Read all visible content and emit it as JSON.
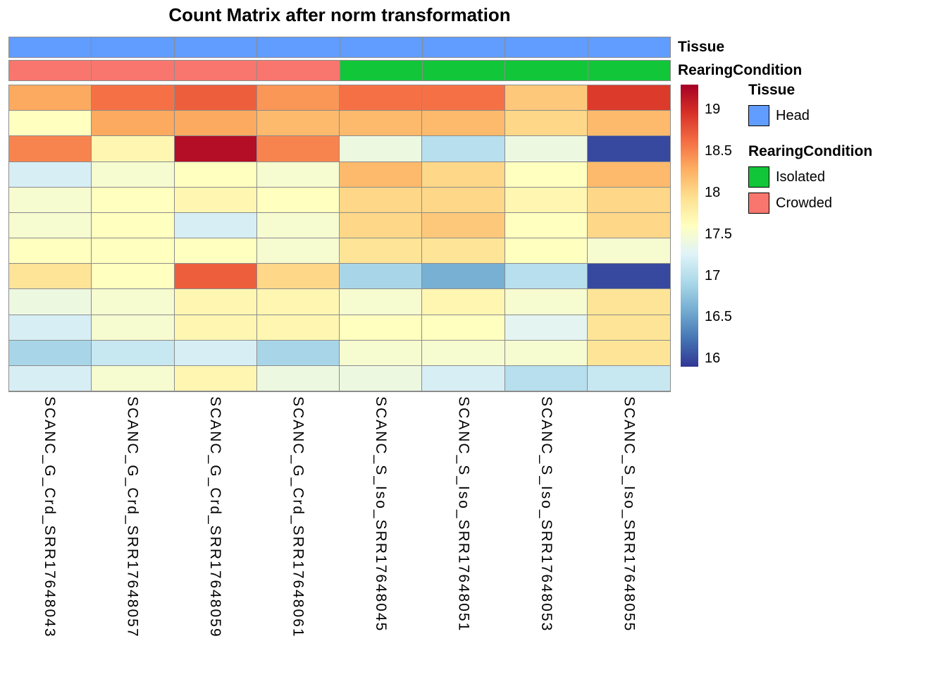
{
  "title": "Count Matrix after norm transformation",
  "annotation_rows": {
    "tissue_label": "Tissue",
    "rearing_label": "RearingCondition"
  },
  "annotation_colors": {
    "Head": "#619CFF",
    "Isolated": "#11C638",
    "Crowded": "#F8766D"
  },
  "legend": {
    "tissue_title": "Tissue",
    "tissue_items": [
      {
        "label": "Head",
        "color": "#619CFF"
      }
    ],
    "rearing_title": "RearingCondition",
    "rearing_items": [
      {
        "label": "Isolated",
        "color": "#11C638"
      },
      {
        "label": "Crowded",
        "color": "#F8766D"
      }
    ]
  },
  "colorbar": {
    "min": 15.9,
    "max": 19.3,
    "ticks": [
      19,
      18.5,
      18,
      17.5,
      17,
      16.5,
      16
    ],
    "palette": [
      "#313695",
      "#4575B4",
      "#74ADD1",
      "#ABD9E9",
      "#E0F3F8",
      "#FFFFBF",
      "#FEE090",
      "#FDAE61",
      "#F46D43",
      "#D73027",
      "#A50026"
    ]
  },
  "chart_data": {
    "type": "heatmap",
    "title": "Count Matrix after norm transformation",
    "xlabel": "",
    "ylabel": "",
    "value_range": [
      15.9,
      19.3
    ],
    "legend_position": "right",
    "grid": true,
    "columns": [
      "SCANC_G_Crd_SRR17648043",
      "SCANC_G_Crd_SRR17648057",
      "SCANC_G_Crd_SRR17648059",
      "SCANC_G_Crd_SRR17648061",
      "SCANC_S_Iso_SRR17648045",
      "SCANC_S_Iso_SRR17648051",
      "SCANC_S_Iso_SRR17648053",
      "SCANC_S_Iso_SRR17648055"
    ],
    "col_annotations": {
      "Tissue": [
        "Head",
        "Head",
        "Head",
        "Head",
        "Head",
        "Head",
        "Head",
        "Head"
      ],
      "RearingCondition": [
        "Crowded",
        "Crowded",
        "Crowded",
        "Crowded",
        "Isolated",
        "Isolated",
        "Isolated",
        "Isolated"
      ]
    },
    "values": [
      [
        18.3,
        18.6,
        18.7,
        18.4,
        18.6,
        18.6,
        18.1,
        18.9
      ],
      [
        17.6,
        18.3,
        18.3,
        18.2,
        18.2,
        18.2,
        18.0,
        18.2
      ],
      [
        18.5,
        17.7,
        19.2,
        18.5,
        17.4,
        17.0,
        17.4,
        16.0
      ],
      [
        17.2,
        17.5,
        17.6,
        17.5,
        18.2,
        18.0,
        17.6,
        18.2
      ],
      [
        17.5,
        17.6,
        17.7,
        17.6,
        18.0,
        18.0,
        17.7,
        18.0
      ],
      [
        17.5,
        17.6,
        17.2,
        17.5,
        18.0,
        18.1,
        17.6,
        18.0
      ],
      [
        17.6,
        17.6,
        17.6,
        17.5,
        17.9,
        17.9,
        17.6,
        17.5
      ],
      [
        17.9,
        17.6,
        18.7,
        18.0,
        16.9,
        16.6,
        17.0,
        16.0
      ],
      [
        17.4,
        17.5,
        17.7,
        17.7,
        17.5,
        17.7,
        17.5,
        17.9
      ],
      [
        17.2,
        17.5,
        17.7,
        17.7,
        17.6,
        17.6,
        17.3,
        17.9
      ],
      [
        16.9,
        17.1,
        17.2,
        16.9,
        17.5,
        17.5,
        17.5,
        17.9
      ],
      [
        17.2,
        17.5,
        17.7,
        17.4,
        17.4,
        17.2,
        17.0,
        17.1
      ]
    ]
  }
}
